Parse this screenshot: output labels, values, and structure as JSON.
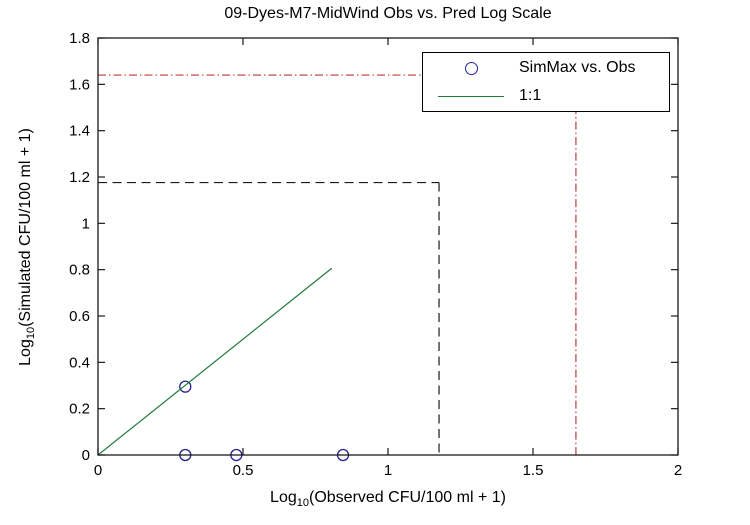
{
  "chart_data": {
    "type": "scatter",
    "title": "09-Dyes-M7-MidWind Obs vs. Pred Log Scale",
    "xlabel": "Log10(Observed CFU/100 ml + 1)",
    "ylabel": "Log10(Simulated CFU/100 ml + 1)",
    "xlabel_parts": {
      "prefix": "Log",
      "sub": "10",
      "rest": "(Observed CFU/100 ml + 1)"
    },
    "ylabel_parts": {
      "prefix": "Log",
      "sub": "10",
      "rest": "(Simulated CFU/100 ml + 1)"
    },
    "xlim": [
      0,
      2
    ],
    "ylim": [
      0,
      1.8
    ],
    "xticks": [
      "0",
      "0.5",
      "1",
      "1.5",
      "2"
    ],
    "yticks": [
      "0",
      "0.2",
      "0.4",
      "0.6",
      "0.8",
      "1",
      "1.2",
      "1.4",
      "1.6",
      "1.8"
    ],
    "grid": false,
    "series": [
      {
        "name": "SimMax vs. Obs",
        "kind": "scatter",
        "marker": "open-circle",
        "color": "#232391",
        "points": [
          [
            0.301,
            0.295
          ],
          [
            0.301,
            0
          ],
          [
            0.477,
            0
          ],
          [
            0.845,
            0
          ]
        ]
      },
      {
        "name": "1:1",
        "kind": "line",
        "style": "solid",
        "color": "#217a38",
        "points": [
          [
            0,
            0
          ],
          [
            0.806,
            0.806
          ]
        ]
      }
    ],
    "reference_lines": [
      {
        "name": "obs-max-dashed-horizontal",
        "style": "dashed",
        "color": "#1a1a1a",
        "points": [
          [
            0,
            1.176
          ],
          [
            1.176,
            1.176
          ]
        ]
      },
      {
        "name": "obs-max-dashed-vertical",
        "style": "dashed",
        "color": "#1a1a1a",
        "points": [
          [
            1.176,
            1.176
          ],
          [
            1.176,
            0
          ]
        ]
      },
      {
        "name": "limit-dashdot-horizontal",
        "style": "dashdot",
        "color": "#bb3a3e",
        "points": [
          [
            0,
            1.64
          ],
          [
            1.648,
            1.64
          ]
        ]
      },
      {
        "name": "limit-dashdot-vertical",
        "style": "dashdot",
        "color": "#bb3a3e",
        "points": [
          [
            1.648,
            1.64
          ],
          [
            1.648,
            0
          ]
        ]
      }
    ],
    "legend": {
      "position": "top-right",
      "entries": [
        {
          "label": "SimMax vs. Obs",
          "swatch": "open-circle",
          "color": "#232391"
        },
        {
          "label": "1:1",
          "swatch": "line",
          "color": "#217a38"
        }
      ]
    },
    "frame_color": "#1a1a1a"
  }
}
